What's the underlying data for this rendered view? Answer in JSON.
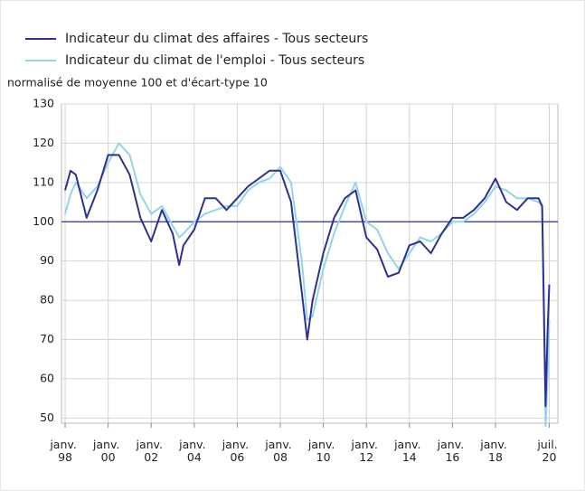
{
  "chart_data": {
    "type": "line",
    "y_label": "normalisé de moyenne 100 et d'écart-type 10",
    "x": [
      1998,
      1998.25,
      1998.5,
      1999,
      1999.5,
      2000,
      2000.5,
      2001,
      2001.5,
      2002,
      2002.5,
      2003,
      2003.3,
      2003.5,
      2004,
      2004.5,
      2005,
      2005.5,
      2006,
      2006.5,
      2007,
      2007.5,
      2008,
      2008.5,
      2009,
      2009.25,
      2009.5,
      2010,
      2010.5,
      2011,
      2011.5,
      2012,
      2012.5,
      2013,
      2013.5,
      2014,
      2014.5,
      2015,
      2015.5,
      2016,
      2016.5,
      2017,
      2017.5,
      2018,
      2018.5,
      2019,
      2019.5,
      2020,
      2020.17,
      2020.33,
      2020.42,
      2020.5
    ],
    "series": [
      {
        "name": "Indicateur du climat des affaires - Tous secteurs",
        "color": "#2e3192",
        "values": [
          108,
          113,
          112,
          101,
          108,
          117,
          117,
          112,
          101,
          95,
          103,
          97,
          89,
          94,
          98,
          106,
          106,
          103,
          106,
          109,
          111,
          113,
          113,
          105,
          82,
          70,
          80,
          92,
          101,
          106,
          108,
          96,
          93,
          86,
          87,
          94,
          95,
          92,
          97,
          101,
          101,
          103,
          106,
          111,
          105,
          103,
          106,
          106,
          104,
          53,
          72,
          84
        ]
      },
      {
        "name": "Indicateur du climat de l'emploi - Tous secteurs",
        "color": "#93d5e8",
        "values": [
          102,
          107,
          110,
          106,
          109,
          115,
          120,
          117,
          107,
          102,
          104,
          99,
          96,
          97,
          100,
          102,
          103,
          104,
          104,
          108,
          110,
          111,
          114,
          110,
          90,
          75,
          76,
          88,
          97,
          104,
          110,
          100,
          98,
          92,
          88,
          92,
          96,
          95,
          97,
          100,
          100,
          102,
          105,
          109,
          108,
          106,
          106,
          105,
          104,
          48,
          60,
          75
        ]
      }
    ],
    "reference_line": 100,
    "xlim": [
      1997.83,
      2020.9
    ],
    "xticks": [
      {
        "value": 1998,
        "label": "janv. 98"
      },
      {
        "value": 2000,
        "label": "janv. 00"
      },
      {
        "value": 2002,
        "label": "janv. 02"
      },
      {
        "value": 2004,
        "label": "janv. 04"
      },
      {
        "value": 2006,
        "label": "janv. 06"
      },
      {
        "value": 2008,
        "label": "janv. 08"
      },
      {
        "value": 2010,
        "label": "janv. 10"
      },
      {
        "value": 2012,
        "label": "janv. 12"
      },
      {
        "value": 2014,
        "label": "janv. 14"
      },
      {
        "value": 2016,
        "label": "janv. 16"
      },
      {
        "value": 2018,
        "label": "janv. 18"
      },
      {
        "value": 2020.5,
        "label": "juil. 20"
      }
    ],
    "ylim": [
      48.7,
      130
    ],
    "yticks": [
      50,
      60,
      70,
      80,
      90,
      100,
      110,
      120,
      130
    ],
    "grid": true
  }
}
